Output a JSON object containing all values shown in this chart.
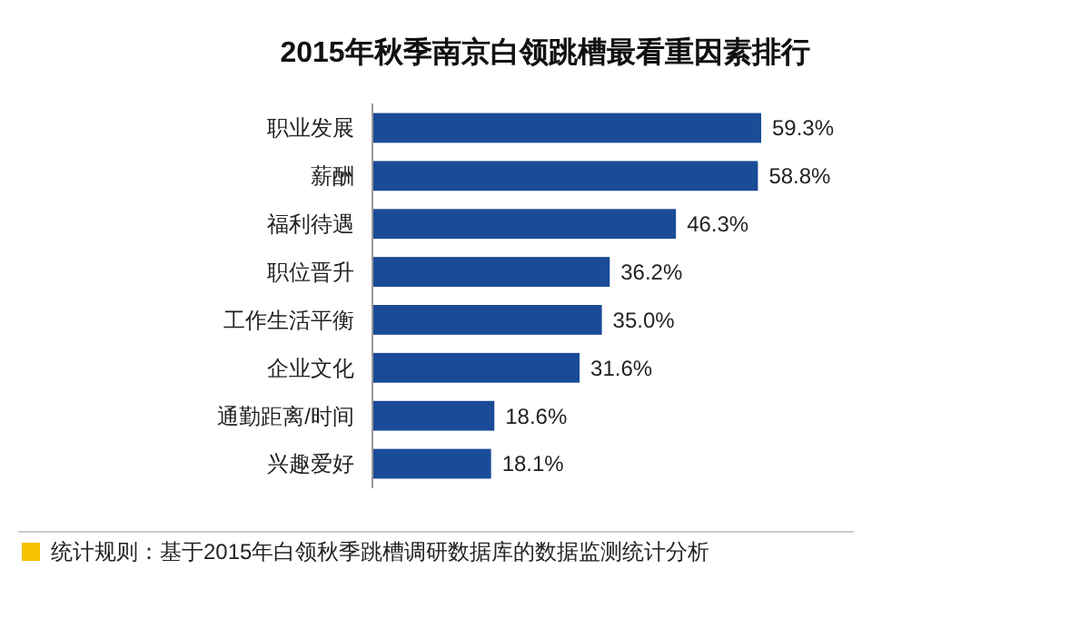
{
  "chart_data": {
    "type": "bar",
    "orientation": "horizontal",
    "title": "2015年秋季南京白领跳槽最看重因素排行",
    "categories": [
      "职业发展",
      "薪酬",
      "福利待遇",
      "职位晋升",
      "工作生活平衡",
      "企业文化",
      "通勤距离/时间",
      "兴趣爱好"
    ],
    "values": [
      59.3,
      58.8,
      46.3,
      36.2,
      35.0,
      31.6,
      18.6,
      18.1
    ],
    "value_labels": [
      "59.3%",
      "58.8%",
      "46.3%",
      "36.2%",
      "35.0%",
      "31.6%",
      "18.6%",
      "18.1%"
    ],
    "color": "#1a4b97",
    "annotations": [
      "统计规则：基于2015年白领秋季跳槽调研数据库的数据监测统计分析"
    ]
  }
}
